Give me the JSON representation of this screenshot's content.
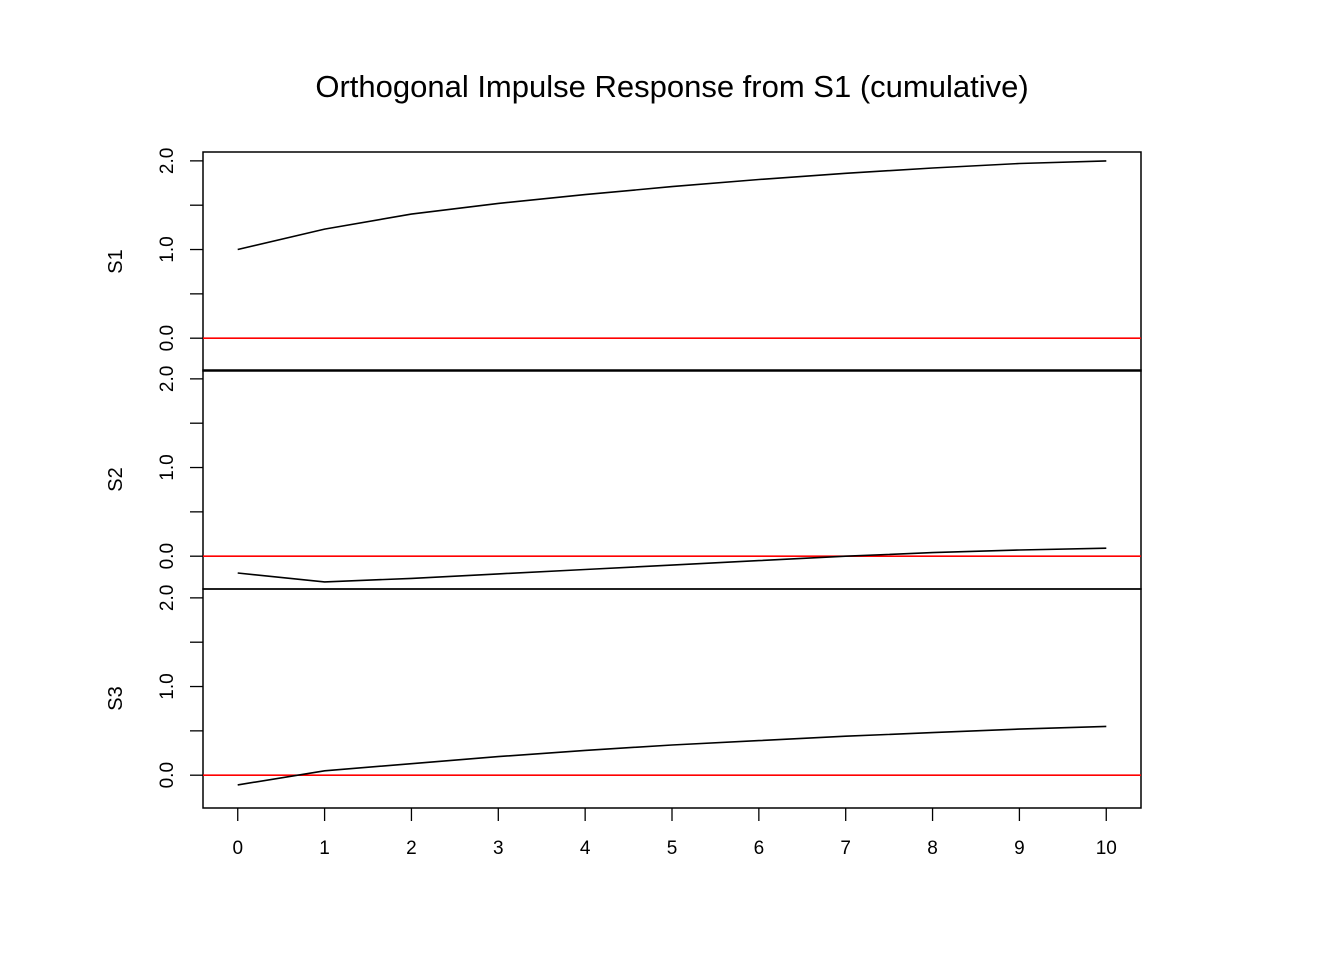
{
  "chart_data": {
    "type": "line",
    "title": "Orthogonal Impulse Response from S1 (cumulative)",
    "x": [
      0,
      1,
      2,
      3,
      4,
      5,
      6,
      7,
      8,
      9,
      10
    ],
    "xlim": [
      -0.4,
      10.4
    ],
    "x_ticks": [
      "0",
      "1",
      "2",
      "3",
      "4",
      "5",
      "6",
      "7",
      "8",
      "9",
      "10"
    ],
    "y_ticks": [
      "0.0",
      "1.0",
      "2.0"
    ],
    "ylim": [
      -0.37,
      2.1
    ],
    "reference_line": {
      "y": 0,
      "color": "#ff0000"
    },
    "line_color": "#000000",
    "grid": false,
    "panels": [
      {
        "label": "S1",
        "values": [
          1.0,
          1.23,
          1.4,
          1.52,
          1.62,
          1.71,
          1.79,
          1.86,
          1.92,
          1.97,
          2.0
        ]
      },
      {
        "label": "S2",
        "values": [
          -0.19,
          -0.29,
          -0.25,
          -0.2,
          -0.15,
          -0.1,
          -0.05,
          0.0,
          0.04,
          0.07,
          0.09
        ]
      },
      {
        "label": "S3",
        "values": [
          -0.11,
          0.05,
          0.13,
          0.21,
          0.28,
          0.34,
          0.39,
          0.44,
          0.48,
          0.52,
          0.55
        ]
      }
    ]
  }
}
